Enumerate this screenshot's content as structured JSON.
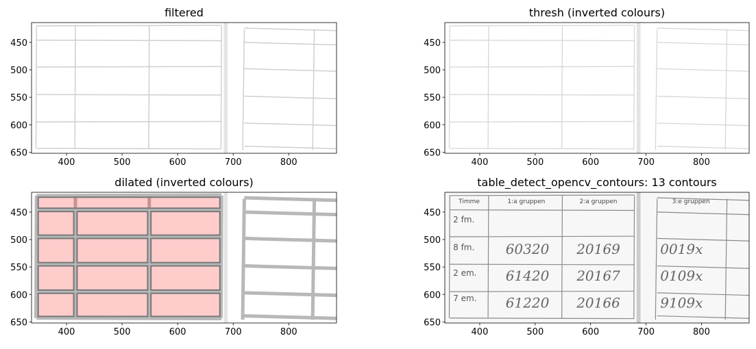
{
  "chart_data": [
    {
      "type": "image",
      "title": "filtered",
      "style": "filtered",
      "xlim": [
        337,
        886
      ],
      "ylim": [
        652,
        414
      ],
      "xticks": [
        400,
        500,
        600,
        700,
        800
      ],
      "yticks": [
        450,
        500,
        550,
        600,
        650
      ]
    },
    {
      "type": "image",
      "title": "thresh (inverted colours)",
      "style": "thresh",
      "xlim": [
        337,
        886
      ],
      "ylim": [
        652,
        414
      ],
      "xticks": [
        400,
        500,
        600,
        700,
        800
      ],
      "yticks": [
        450,
        500,
        550,
        600,
        650
      ]
    },
    {
      "type": "image",
      "title": "dilated (inverted colours)",
      "style": "dilated",
      "xlim": [
        337,
        886
      ],
      "ylim": [
        652,
        414
      ],
      "xticks": [
        400,
        500,
        600,
        700,
        800
      ],
      "yticks": [
        450,
        500,
        550,
        600,
        650
      ]
    },
    {
      "type": "image",
      "title": "table_detect_opencv_contours: 13 contours",
      "style": "original",
      "xlim": [
        337,
        886
      ],
      "ylim": [
        652,
        414
      ],
      "xticks": [
        400,
        500,
        600,
        700,
        800
      ],
      "yticks": [
        450,
        500,
        550,
        600,
        650
      ],
      "column_headers": [
        "Timme",
        "1:a gruppen",
        "2:a gruppen",
        "3:e gruppen"
      ],
      "row_labels": [
        "2 fm.",
        "8 fm.",
        "2 em.",
        "7 em."
      ],
      "handwritten": [
        [
          "60320",
          "20169",
          "0019x"
        ],
        [
          "61420",
          "20167",
          "0109x"
        ],
        [
          "61220",
          "20166",
          "9109x"
        ]
      ]
    }
  ]
}
